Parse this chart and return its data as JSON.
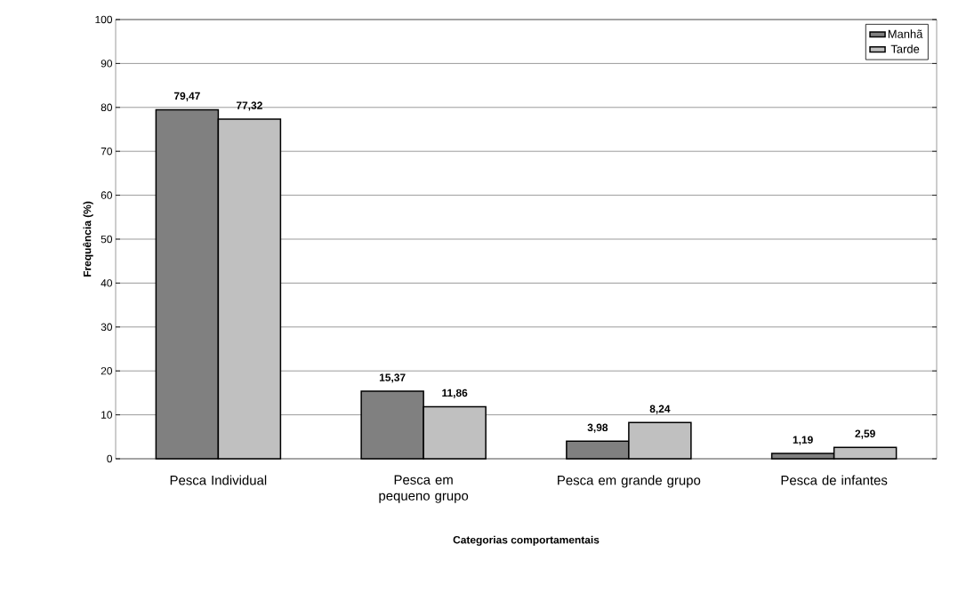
{
  "chart_data": {
    "type": "bar",
    "categories": [
      "Pesca Individual",
      "Pesca em pequeno grupo",
      "Pesca em grande grupo",
      "Pesca de infantes"
    ],
    "series": [
      {
        "name": "Manhã",
        "color": "#808080",
        "values": [
          79.47,
          15.37,
          3.98,
          1.19
        ],
        "value_labels": [
          "79,47",
          "15,37",
          "3,98",
          "1,19"
        ]
      },
      {
        "name": "Tarde",
        "color": "#c0c0c0",
        "values": [
          77.32,
          11.86,
          8.24,
          2.59
        ],
        "value_labels": [
          "77,32",
          "11,86",
          "8,24",
          "2,59"
        ]
      }
    ],
    "xlabel": "Categorias comportamentais",
    "ylabel": "Frequência (%)",
    "ylim": [
      0,
      100
    ],
    "yticks": [
      0,
      10,
      20,
      30,
      40,
      50,
      60,
      70,
      80,
      90,
      100
    ],
    "grid": "y",
    "legend": "top right"
  }
}
